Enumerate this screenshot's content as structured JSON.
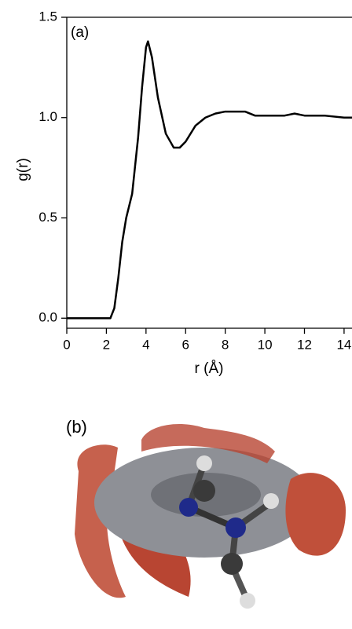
{
  "chart_data": {
    "type": "line",
    "annotations": [
      "(a)",
      "(b)"
    ],
    "xlabel": "r (Å)",
    "ylabel": "g(r)",
    "x": [
      0,
      2.2,
      2.4,
      2.6,
      2.8,
      3.0,
      3.3,
      3.6,
      3.8,
      4.0,
      4.1,
      4.3,
      4.6,
      5.0,
      5.4,
      5.7,
      6.0,
      6.5,
      7.0,
      7.5,
      8.0,
      9.0,
      9.5,
      10,
      11,
      11.5,
      12,
      13,
      14,
      14.4
    ],
    "values": [
      0,
      0,
      0.05,
      0.2,
      0.38,
      0.5,
      0.62,
      0.9,
      1.15,
      1.35,
      1.38,
      1.3,
      1.1,
      0.92,
      0.85,
      0.85,
      0.88,
      0.96,
      1.0,
      1.02,
      1.03,
      1.03,
      1.01,
      1.01,
      1.01,
      1.02,
      1.01,
      1.01,
      1.0,
      1.0
    ],
    "color": "#000000",
    "xlim": [
      0,
      14.4
    ],
    "ylim": [
      -0.05,
      1.5
    ],
    "xticks": [
      0,
      2,
      4,
      6,
      8,
      10,
      12,
      14
    ],
    "yticks": [
      {
        "value": 0,
        "label": "0.0"
      },
      0.5,
      {
        "value": 1,
        "label": "1.0"
      },
      {
        "value": 1.5,
        "label": "1.5"
      }
    ]
  }
}
